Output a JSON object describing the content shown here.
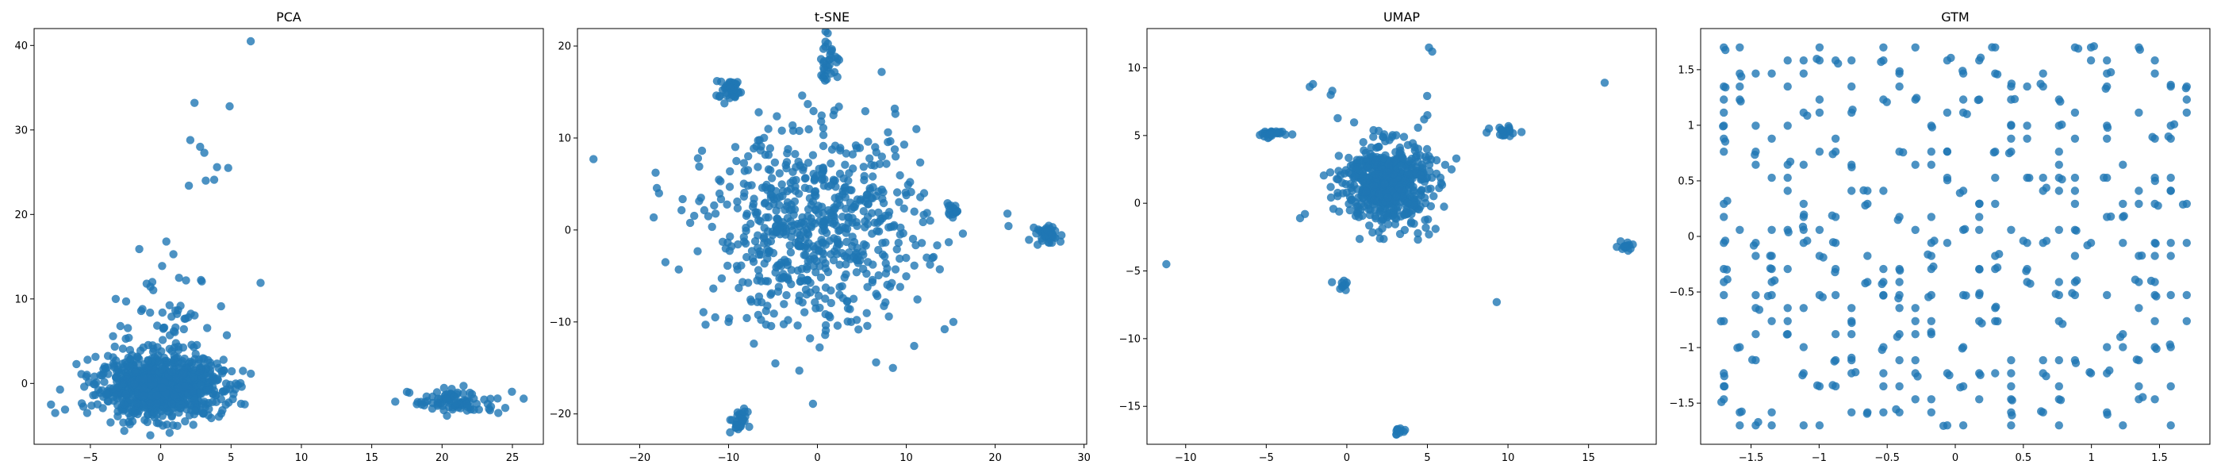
{
  "chart_data": [
    {
      "type": "scatter",
      "title": "PCA",
      "xlabel": "",
      "ylabel": "",
      "xlim": [
        -9.0,
        27.2
      ],
      "ylim": [
        -7.2,
        42.0
      ],
      "xticks": [
        -5,
        0,
        5,
        10,
        15,
        20,
        25
      ],
      "yticks": [
        0,
        10,
        20,
        30,
        40
      ],
      "color": "#1f77b4",
      "clusters": [
        {
          "cx": 0,
          "cy": -0.5,
          "sx": 2.2,
          "sy": 1.7,
          "n": 900
        },
        {
          "cx": 0.5,
          "cy": 6,
          "sx": 1.8,
          "sy": 3.5,
          "n": 70
        },
        {
          "cx": 21,
          "cy": -2.2,
          "sx": 1.6,
          "sy": 0.7,
          "n": 90
        }
      ],
      "points": [
        [
          6.4,
          40.5
        ],
        [
          4.9,
          32.8
        ],
        [
          2.4,
          33.2
        ],
        [
          2.1,
          28.8
        ],
        [
          2.8,
          28.0
        ],
        [
          3.1,
          27.3
        ],
        [
          4.8,
          25.5
        ],
        [
          2.0,
          23.4
        ],
        [
          3.2,
          24.0
        ],
        [
          3.8,
          24.1
        ],
        [
          4.0,
          25.6
        ],
        [
          7.1,
          11.9
        ],
        [
          -3.2,
          10.0
        ],
        [
          -1.0,
          11.8
        ],
        [
          0.4,
          16.8
        ],
        [
          0.9,
          15.3
        ],
        [
          1.3,
          12.5
        ],
        [
          1.8,
          12.2
        ],
        [
          -1.3,
          8.8
        ],
        [
          -0.6,
          12.0
        ],
        [
          0.1,
          13.9
        ],
        [
          -7.8,
          -2.5
        ],
        [
          -7.5,
          -3.5
        ],
        [
          -6.8,
          -3.1
        ],
        [
          -5.2,
          2.8
        ],
        [
          4.7,
          5.7
        ],
        [
          -2.0,
          -4.5
        ],
        [
          17.5,
          -1.0
        ],
        [
          25.8,
          -1.8
        ],
        [
          24.0,
          -3.5
        ]
      ]
    },
    {
      "type": "scatter",
      "title": "t-SNE",
      "xlabel": "",
      "ylabel": "",
      "xlim": [
        -27.0,
        30.3
      ],
      "ylim": [
        -23.3,
        21.9
      ],
      "xticks": [
        -20,
        -10,
        0,
        10,
        20,
        30
      ],
      "yticks": [
        -20,
        -10,
        0,
        10,
        20
      ],
      "color": "#1f77b4",
      "clusters": [
        {
          "cx": 0,
          "cy": 0,
          "sx": 6.0,
          "sy": 5.2,
          "n": 650
        },
        {
          "cx": -9.8,
          "cy": 15.2,
          "sx": 0.8,
          "sy": 0.6,
          "n": 40
        },
        {
          "cx": 1.2,
          "cy": 18.5,
          "sx": 0.6,
          "sy": 1.2,
          "n": 35
        },
        {
          "cx": 26,
          "cy": -0.5,
          "sx": 0.7,
          "sy": 0.6,
          "n": 40
        },
        {
          "cx": -9,
          "cy": -20.8,
          "sx": 0.6,
          "sy": 0.6,
          "n": 30
        },
        {
          "cx": 15.2,
          "cy": 2.2,
          "sx": 0.5,
          "sy": 0.3,
          "n": 15
        }
      ],
      "points": [
        [
          -25.2,
          7.7
        ],
        [
          -13.3,
          6.9
        ],
        [
          -17.1,
          -3.5
        ],
        [
          -15.6,
          -4.3
        ],
        [
          -13.1,
          3.5
        ],
        [
          -11.5,
          -9.5
        ],
        [
          -10.0,
          -10.0
        ],
        [
          -4.0,
          10.8
        ],
        [
          3.8,
          -10.0
        ],
        [
          6.6,
          -14.4
        ],
        [
          8.5,
          -15.0
        ],
        [
          12.3,
          -3.0
        ],
        [
          15.3,
          -10.0
        ],
        [
          8.7,
          13.2
        ],
        [
          12.0,
          4.0
        ],
        [
          -0.5,
          -18.9
        ],
        [
          6.5,
          9.0
        ],
        [
          5.7,
          9.6
        ]
      ]
    },
    {
      "type": "scatter",
      "title": "UMAP",
      "xlabel": "",
      "ylabel": "",
      "xlim": [
        -12.4,
        19.2
      ],
      "ylim": [
        -17.8,
        12.9
      ],
      "xticks": [
        -10,
        -5,
        0,
        5,
        10,
        15
      ],
      "yticks": [
        -15,
        -10,
        -5,
        0,
        5,
        10
      ],
      "color": "#1f77b4",
      "clusters": [
        {
          "cx": 2.5,
          "cy": 1.5,
          "sx": 1.3,
          "sy": 1.5,
          "n": 600
        },
        {
          "cx": -4.6,
          "cy": 5.1,
          "sx": 0.6,
          "sy": 0.15,
          "n": 30
        },
        {
          "cx": 9.8,
          "cy": 5.3,
          "sx": 0.4,
          "sy": 0.2,
          "n": 20
        },
        {
          "cx": 17.3,
          "cy": -3.2,
          "sx": 0.3,
          "sy": 0.15,
          "n": 15
        },
        {
          "cx": 3.2,
          "cy": -16.8,
          "sx": 0.15,
          "sy": 0.15,
          "n": 10
        },
        {
          "cx": -0.2,
          "cy": -6.1,
          "sx": 0.3,
          "sy": 0.2,
          "n": 10
        }
      ],
      "points": [
        [
          -11.2,
          -4.5
        ],
        [
          -2.1,
          8.8
        ],
        [
          -2.3,
          8.6
        ],
        [
          -1.0,
          8.0
        ],
        [
          -0.9,
          8.3
        ],
        [
          -2.6,
          -0.8
        ],
        [
          -2.9,
          -1.1
        ],
        [
          5.1,
          11.5
        ],
        [
          5.3,
          11.2
        ],
        [
          4.8,
          6.2
        ],
        [
          5.0,
          6.5
        ],
        [
          4.9,
          -1.8
        ],
        [
          5.1,
          -2.3
        ],
        [
          9.3,
          -7.3
        ],
        [
          16.0,
          8.9
        ],
        [
          6.5,
          2.5
        ],
        [
          -0.5,
          3.5
        ],
        [
          -1.0,
          1.2
        ]
      ]
    },
    {
      "type": "scatter",
      "title": "GTM",
      "xlabel": "",
      "ylabel": "",
      "xlim": [
        -1.87,
        1.87
      ],
      "ylim": [
        -1.87,
        1.87
      ],
      "xticks": [
        -1.5,
        -1.0,
        -0.5,
        0.0,
        0.5,
        1.0,
        1.5
      ],
      "yticks": [
        -1.5,
        -1.0,
        -0.5,
        0.0,
        0.5,
        1.0,
        1.5
      ],
      "color": "#1f77b4",
      "grid_lattice": {
        "min": -1.7,
        "max": 1.7,
        "n": 30,
        "occupied_fraction": 0.33
      }
    }
  ]
}
